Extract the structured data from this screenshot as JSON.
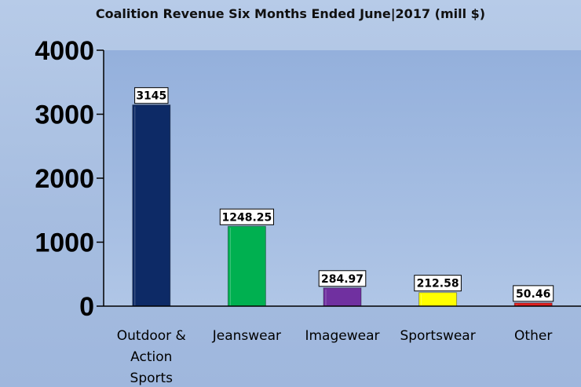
{
  "chart_data": {
    "type": "bar",
    "title": "Coalition Revenue Six Months Ended June|2017 (mill $)",
    "xlabel": "",
    "ylabel": "",
    "ylim": [
      0,
      4000
    ],
    "yticks": [
      0,
      1000,
      2000,
      3000,
      4000
    ],
    "grid": false,
    "legend": "none",
    "categories": [
      [
        "Outdoor &",
        "Action",
        "Sports"
      ],
      [
        "Jeanswear"
      ],
      [
        "Imagewear"
      ],
      [
        "Sportswear"
      ],
      [
        "Other"
      ]
    ],
    "values": [
      3145,
      1248.25,
      284.97,
      212.58,
      50.46
    ],
    "value_labels": [
      "3145",
      "1248.25",
      "284.97",
      "212.58",
      "50.46"
    ],
    "colors": [
      "#0d2a66",
      "#00b050",
      "#7030a0",
      "#ffff00",
      "#e02020"
    ]
  }
}
